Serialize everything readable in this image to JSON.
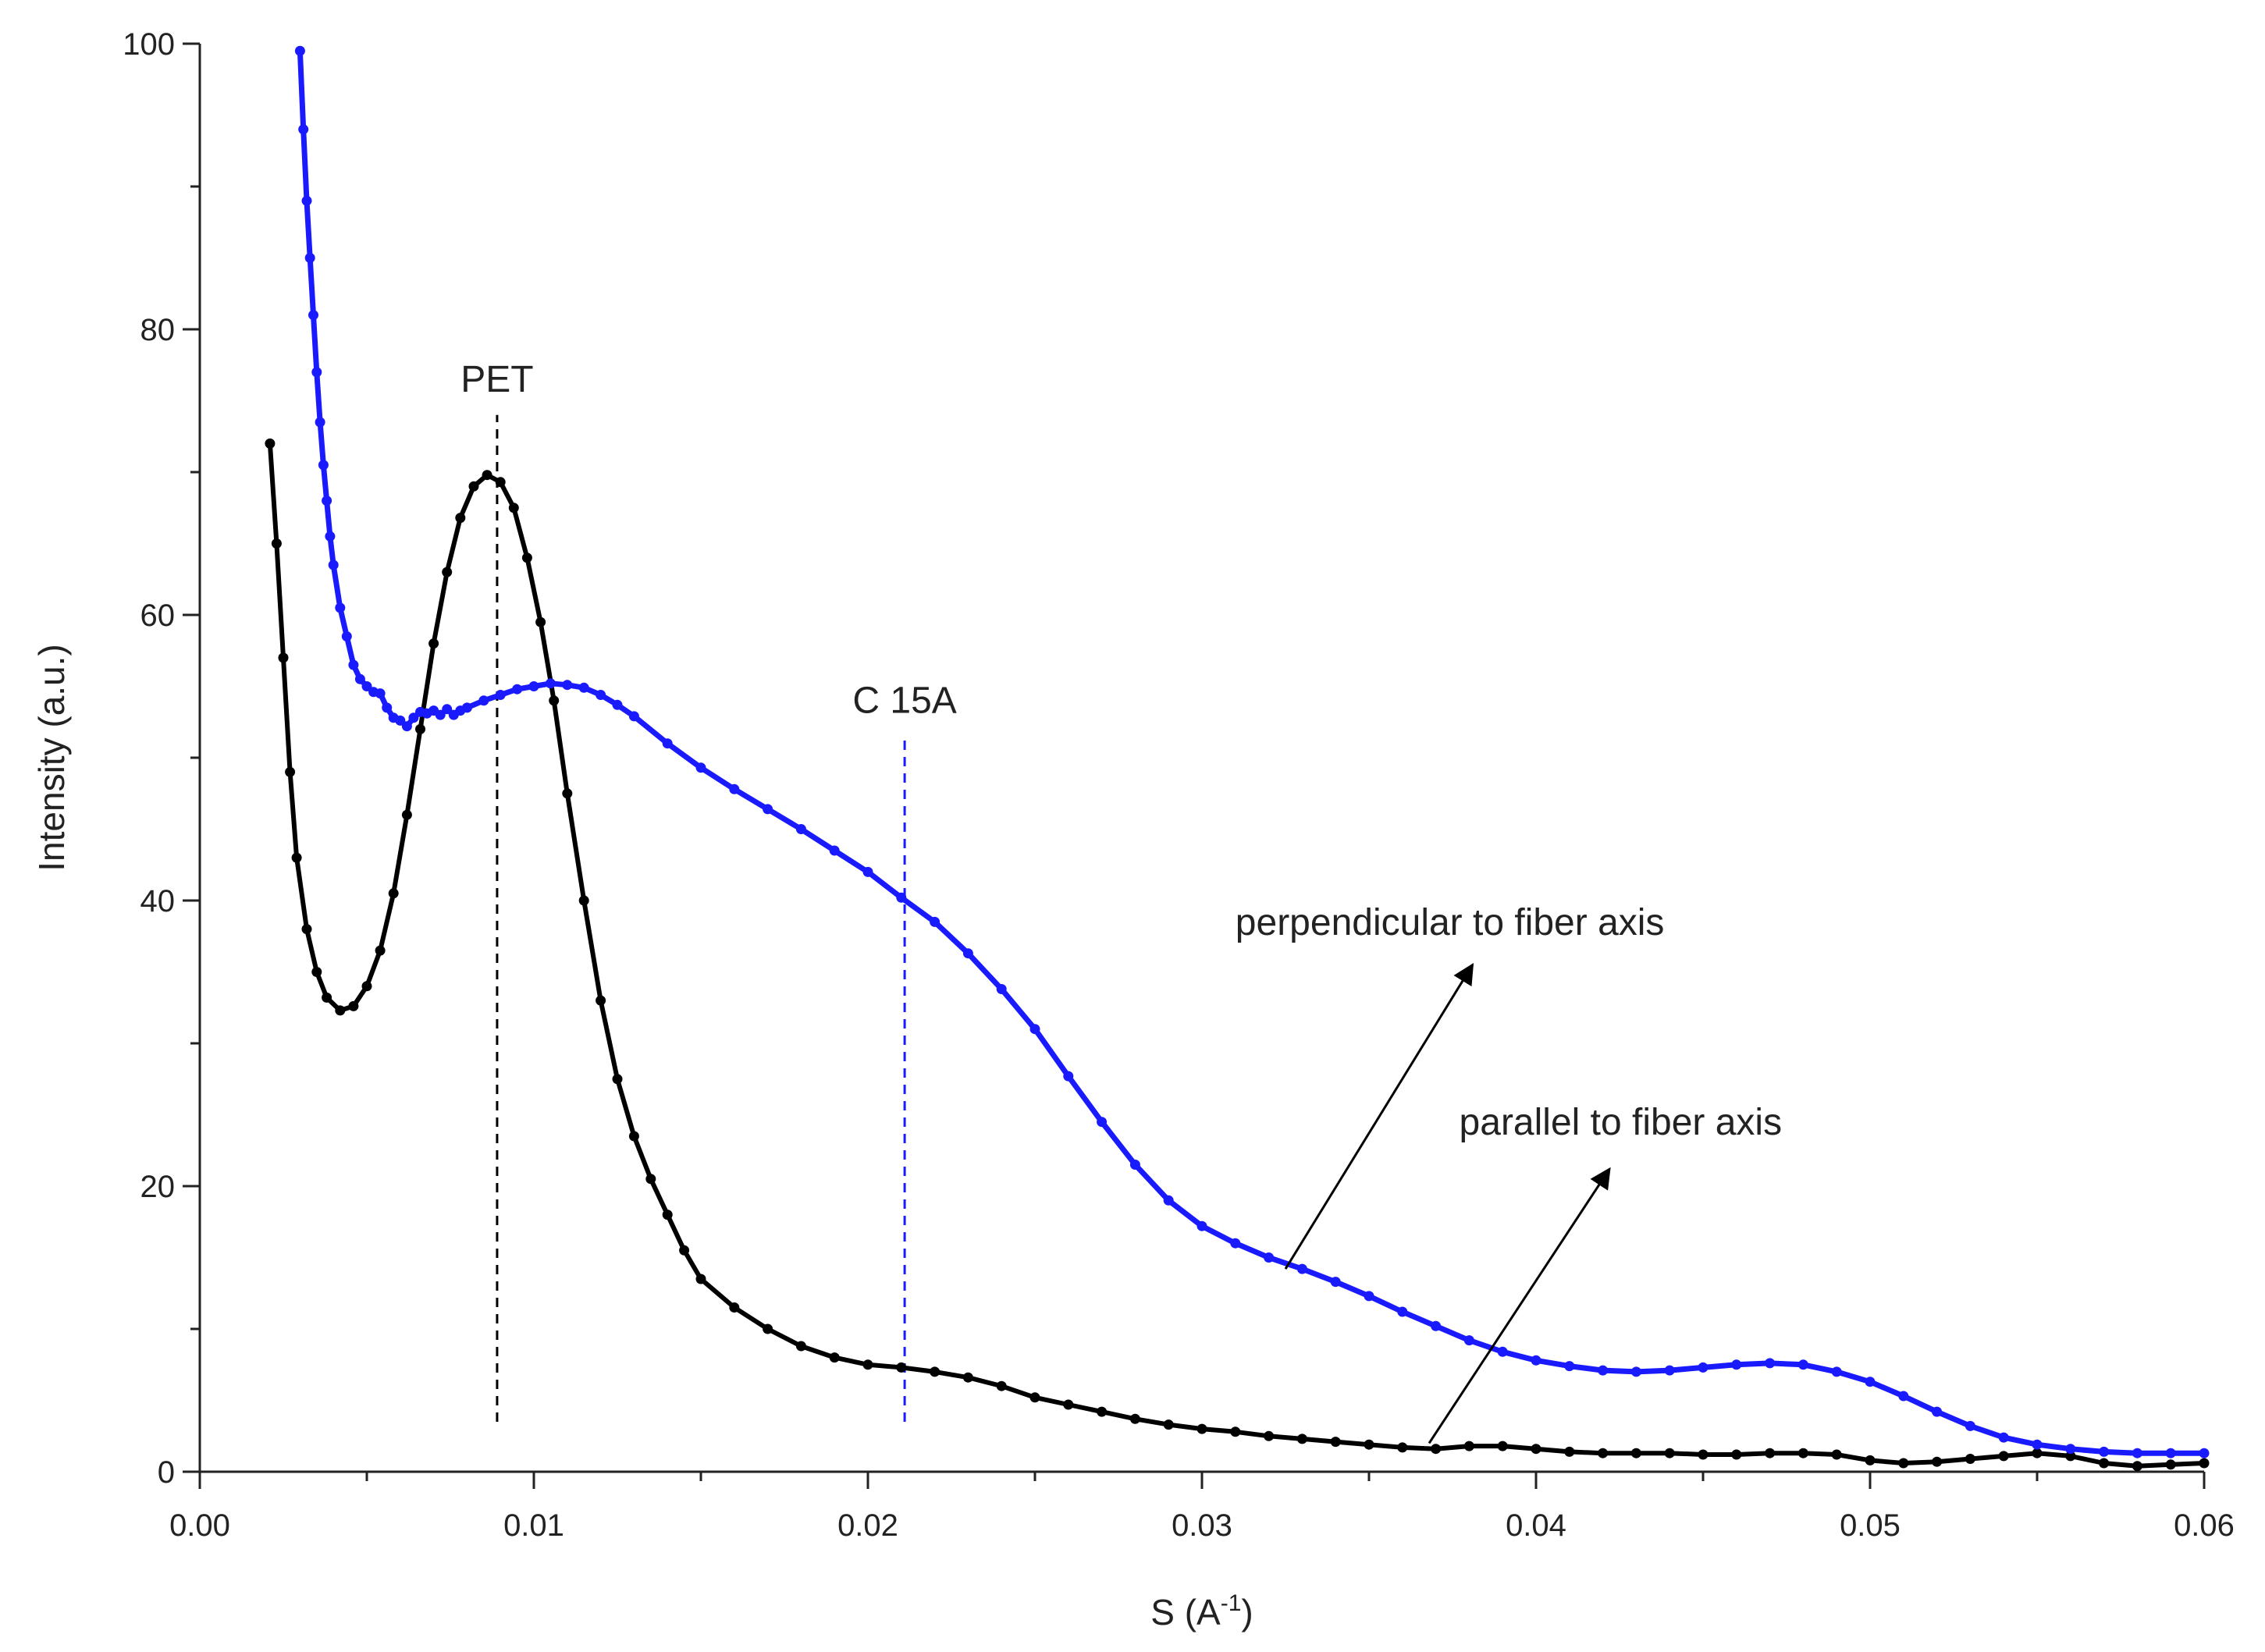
{
  "chart_data": {
    "type": "line",
    "title": "",
    "xlabel_prefix": "S (A",
    "xlabel_sup": "-1",
    "xlabel_suffix": ")",
    "ylabel": "Intensity (a.u.)",
    "xlim": [
      0.0,
      0.06
    ],
    "ylim": [
      0,
      100
    ],
    "x_ticks": [
      "0.00",
      "0.01",
      "0.02",
      "0.03",
      "0.04",
      "0.05",
      "0.06"
    ],
    "x_tick_values": [
      0.0,
      0.01,
      0.02,
      0.03,
      0.04,
      0.05,
      0.06
    ],
    "y_ticks": [
      "0",
      "20",
      "40",
      "60",
      "80",
      "100"
    ],
    "y_tick_values": [
      0,
      20,
      40,
      60,
      80,
      100
    ],
    "grid": false,
    "series": [
      {
        "name": "parallel to fiber axis",
        "color": "#000000",
        "points": [
          [
            0.0021,
            72
          ],
          [
            0.0023,
            65
          ],
          [
            0.0025,
            57
          ],
          [
            0.0027,
            49
          ],
          [
            0.0029,
            43
          ],
          [
            0.0032,
            38
          ],
          [
            0.0035,
            35
          ],
          [
            0.0038,
            33.2
          ],
          [
            0.0042,
            32.3
          ],
          [
            0.0046,
            32.6
          ],
          [
            0.005,
            34
          ],
          [
            0.0054,
            36.5
          ],
          [
            0.0058,
            40.5
          ],
          [
            0.0062,
            46
          ],
          [
            0.0066,
            52
          ],
          [
            0.007,
            58
          ],
          [
            0.0074,
            63
          ],
          [
            0.0078,
            66.8
          ],
          [
            0.0082,
            69
          ],
          [
            0.0086,
            69.8
          ],
          [
            0.009,
            69.3
          ],
          [
            0.0094,
            67.5
          ],
          [
            0.0098,
            64
          ],
          [
            0.0102,
            59.5
          ],
          [
            0.0106,
            54
          ],
          [
            0.011,
            47.5
          ],
          [
            0.0115,
            40
          ],
          [
            0.012,
            33
          ],
          [
            0.0125,
            27.5
          ],
          [
            0.013,
            23.5
          ],
          [
            0.0135,
            20.5
          ],
          [
            0.014,
            18
          ],
          [
            0.0145,
            15.5
          ],
          [
            0.015,
            13.5
          ],
          [
            0.016,
            11.5
          ],
          [
            0.017,
            10
          ],
          [
            0.018,
            8.8
          ],
          [
            0.019,
            8
          ],
          [
            0.02,
            7.5
          ],
          [
            0.021,
            7.3
          ],
          [
            0.022,
            7
          ],
          [
            0.023,
            6.6
          ],
          [
            0.024,
            6
          ],
          [
            0.025,
            5.2
          ],
          [
            0.026,
            4.7
          ],
          [
            0.027,
            4.2
          ],
          [
            0.028,
            3.7
          ],
          [
            0.029,
            3.3
          ],
          [
            0.03,
            3
          ],
          [
            0.031,
            2.8
          ],
          [
            0.032,
            2.5
          ],
          [
            0.033,
            2.3
          ],
          [
            0.034,
            2.1
          ],
          [
            0.035,
            1.9
          ],
          [
            0.036,
            1.7
          ],
          [
            0.037,
            1.6
          ],
          [
            0.038,
            1.8
          ],
          [
            0.039,
            1.8
          ],
          [
            0.04,
            1.6
          ],
          [
            0.041,
            1.4
          ],
          [
            0.042,
            1.3
          ],
          [
            0.043,
            1.3
          ],
          [
            0.044,
            1.3
          ],
          [
            0.045,
            1.2
          ],
          [
            0.046,
            1.2
          ],
          [
            0.047,
            1.3
          ],
          [
            0.048,
            1.3
          ],
          [
            0.049,
            1.2
          ],
          [
            0.05,
            0.8
          ],
          [
            0.051,
            0.6
          ],
          [
            0.052,
            0.7
          ],
          [
            0.053,
            0.9
          ],
          [
            0.054,
            1.1
          ],
          [
            0.055,
            1.3
          ],
          [
            0.056,
            1.1
          ],
          [
            0.057,
            0.6
          ],
          [
            0.058,
            0.4
          ],
          [
            0.059,
            0.5
          ],
          [
            0.06,
            0.6
          ]
        ]
      },
      {
        "name": "perpendicular to fiber axis",
        "color": "#1a1aff",
        "points": [
          [
            0.003,
            99.5
          ],
          [
            0.0031,
            94
          ],
          [
            0.0032,
            89
          ],
          [
            0.0033,
            85
          ],
          [
            0.0034,
            81
          ],
          [
            0.0035,
            77
          ],
          [
            0.0036,
            73.5
          ],
          [
            0.0037,
            70.5
          ],
          [
            0.0038,
            68
          ],
          [
            0.0039,
            65.5
          ],
          [
            0.004,
            63.5
          ],
          [
            0.0042,
            60.5
          ],
          [
            0.0044,
            58.5
          ],
          [
            0.0046,
            56.5
          ],
          [
            0.0048,
            55.5
          ],
          [
            0.005,
            55
          ],
          [
            0.0052,
            54.6
          ],
          [
            0.0054,
            54.5
          ],
          [
            0.0056,
            53.5
          ],
          [
            0.0058,
            52.8
          ],
          [
            0.006,
            52.6
          ],
          [
            0.0062,
            52.2
          ],
          [
            0.0064,
            52.8
          ],
          [
            0.0066,
            53.2
          ],
          [
            0.0068,
            53.1
          ],
          [
            0.007,
            53.3
          ],
          [
            0.0072,
            53.0
          ],
          [
            0.0074,
            53.4
          ],
          [
            0.0076,
            53.0
          ],
          [
            0.0078,
            53.3
          ],
          [
            0.008,
            53.5
          ],
          [
            0.0085,
            54
          ],
          [
            0.009,
            54.4
          ],
          [
            0.0095,
            54.8
          ],
          [
            0.01,
            55
          ],
          [
            0.0105,
            55.2
          ],
          [
            0.011,
            55.1
          ],
          [
            0.0115,
            54.9
          ],
          [
            0.012,
            54.4
          ],
          [
            0.0125,
            53.7
          ],
          [
            0.013,
            52.9
          ],
          [
            0.014,
            51
          ],
          [
            0.015,
            49.3
          ],
          [
            0.016,
            47.8
          ],
          [
            0.017,
            46.4
          ],
          [
            0.018,
            45
          ],
          [
            0.019,
            43.5
          ],
          [
            0.02,
            42
          ],
          [
            0.021,
            40.2
          ],
          [
            0.022,
            38.5
          ],
          [
            0.023,
            36.3
          ],
          [
            0.024,
            33.8
          ],
          [
            0.025,
            31
          ],
          [
            0.026,
            27.7
          ],
          [
            0.027,
            24.5
          ],
          [
            0.028,
            21.5
          ],
          [
            0.029,
            19
          ],
          [
            0.03,
            17.2
          ],
          [
            0.031,
            16
          ],
          [
            0.032,
            15
          ],
          [
            0.033,
            14.2
          ],
          [
            0.034,
            13.3
          ],
          [
            0.035,
            12.3
          ],
          [
            0.036,
            11.2
          ],
          [
            0.037,
            10.2
          ],
          [
            0.038,
            9.2
          ],
          [
            0.039,
            8.4
          ],
          [
            0.04,
            7.8
          ],
          [
            0.041,
            7.4
          ],
          [
            0.042,
            7.1
          ],
          [
            0.043,
            7.0
          ],
          [
            0.044,
            7.1
          ],
          [
            0.045,
            7.3
          ],
          [
            0.046,
            7.5
          ],
          [
            0.047,
            7.6
          ],
          [
            0.048,
            7.5
          ],
          [
            0.049,
            7.0
          ],
          [
            0.05,
            6.3
          ],
          [
            0.051,
            5.3
          ],
          [
            0.052,
            4.2
          ],
          [
            0.053,
            3.2
          ],
          [
            0.054,
            2.4
          ],
          [
            0.055,
            1.9
          ],
          [
            0.056,
            1.6
          ],
          [
            0.057,
            1.4
          ],
          [
            0.058,
            1.3
          ],
          [
            0.059,
            1.3
          ],
          [
            0.06,
            1.3
          ]
        ]
      }
    ],
    "reference_lines": [
      {
        "label": "PET",
        "x": 0.0089,
        "y_from": 3.5,
        "y_to": 74,
        "color": "#000000"
      },
      {
        "label": "C 15A",
        "x": 0.0211,
        "y_from": 3.5,
        "y_to": 51.5,
        "color": "#1a1aff"
      }
    ],
    "annotations": [
      {
        "text": "perpendicular to fiber axis",
        "anchor_x": 0.0325,
        "anchor_y": 14.2,
        "tip_x": 0.0381,
        "tip_y": 35.5,
        "text_x": 0.031,
        "text_y": 37.6
      },
      {
        "text": "parallel to fiber axis",
        "anchor_x": 0.0368,
        "anchor_y": 2.0,
        "tip_x": 0.0422,
        "tip_y": 21.2,
        "text_x": 0.0377,
        "text_y": 23.6
      }
    ]
  }
}
